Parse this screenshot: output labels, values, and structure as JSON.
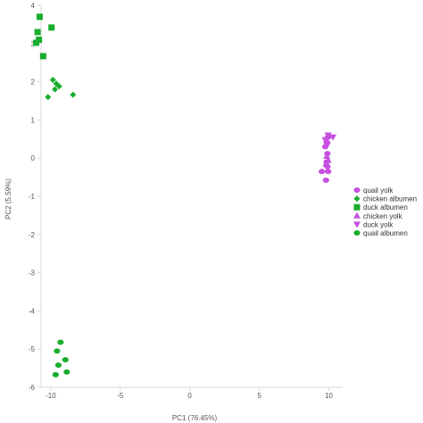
{
  "chart_data": {
    "type": "scatter",
    "title": "",
    "xlabel": "PC1 (76.45%)",
    "ylabel": "PC2 (5.59%)",
    "xlim": [
      -10.7,
      11
    ],
    "ylim": [
      -6,
      4
    ],
    "xticks": [
      -10,
      -5,
      0,
      5,
      10
    ],
    "yticks": [
      4,
      3,
      2,
      1,
      0,
      -1,
      -2,
      -3,
      -4,
      -5,
      -6
    ],
    "grid": false,
    "legend": "right",
    "series": [
      {
        "name": "quail yolk",
        "marker": "circle",
        "color": "#c64fe0",
        "points": [
          [
            9.95,
            0.55
          ],
          [
            9.85,
            0.42
          ],
          [
            9.75,
            0.3
          ],
          [
            9.9,
            0.12
          ],
          [
            9.85,
            -0.1
          ],
          [
            9.9,
            -0.22
          ],
          [
            9.5,
            -0.35
          ],
          [
            9.95,
            -0.35
          ],
          [
            9.8,
            -0.58
          ]
        ]
      },
      {
        "name": "chicken albumen",
        "marker": "diamond",
        "color": "#19ad2e",
        "points": [
          [
            -9.85,
            2.05
          ],
          [
            -9.6,
            1.95
          ],
          [
            -9.4,
            1.88
          ],
          [
            -9.7,
            1.8
          ],
          [
            -10.2,
            1.6
          ],
          [
            -8.4,
            1.66
          ]
        ]
      },
      {
        "name": "duck albumen",
        "marker": "square",
        "color": "#19ad2e",
        "points": [
          [
            -10.8,
            3.7
          ],
          [
            -9.95,
            3.42
          ],
          [
            -10.95,
            3.3
          ],
          [
            -10.85,
            3.1
          ],
          [
            -11.05,
            3.02
          ],
          [
            -10.55,
            2.67
          ]
        ]
      },
      {
        "name": "chicken yolk",
        "marker": "triangle-up",
        "color": "#c64fe0",
        "points": [
          [
            9.85,
            0.05
          ],
          [
            9.95,
            -0.05
          ],
          [
            9.8,
            -0.15
          ]
        ]
      },
      {
        "name": "duck yolk",
        "marker": "triangle-down",
        "color": "#c64fe0",
        "points": [
          [
            9.95,
            0.6
          ],
          [
            10.3,
            0.55
          ],
          [
            9.75,
            0.48
          ],
          [
            9.9,
            0.35
          ]
        ]
      },
      {
        "name": "quail albumen",
        "marker": "circle",
        "color": "#19ad2e",
        "points": [
          [
            -9.3,
            -4.82
          ],
          [
            -9.55,
            -5.05
          ],
          [
            -8.95,
            -5.28
          ],
          [
            -9.45,
            -5.42
          ],
          [
            -8.85,
            -5.6
          ],
          [
            -9.65,
            -5.67
          ]
        ]
      }
    ]
  }
}
